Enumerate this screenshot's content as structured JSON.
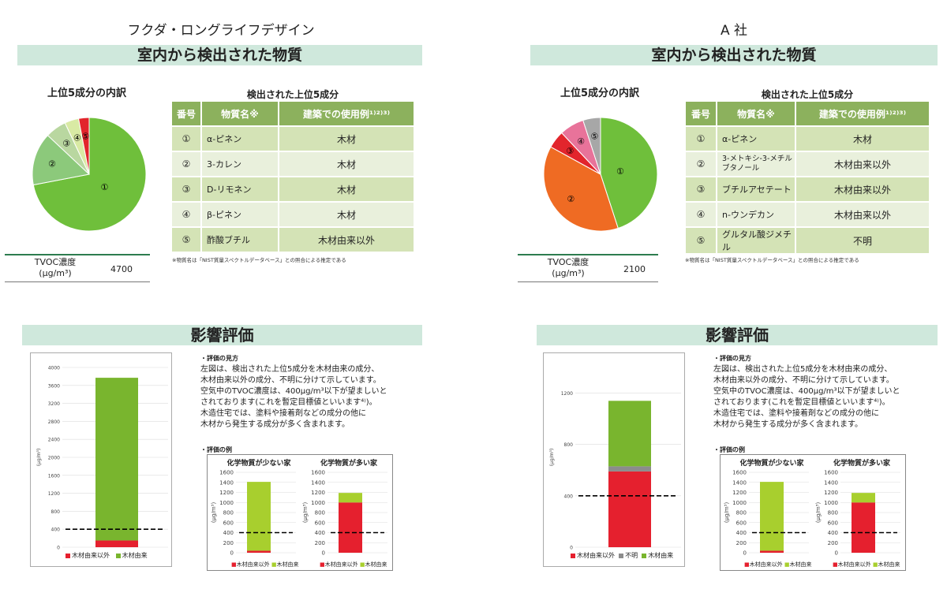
{
  "panels": [
    {
      "company": "フクダ・ロングライフデザイン",
      "banner": "室内から検出された物質",
      "pie_title": "上位5成分の内訳",
      "table_title": "検出された上位5成分",
      "table_headers": [
        "番号",
        "物質名※",
        "建築での使用例¹⁾²⁾³⁾"
      ],
      "rows": [
        {
          "no": "①",
          "name": "α-ピネン",
          "use": "木材"
        },
        {
          "no": "②",
          "name": "3-カレン",
          "use": "木材"
        },
        {
          "no": "③",
          "name": "D-リモネン",
          "use": "木材"
        },
        {
          "no": "④",
          "name": "β-ピネン",
          "use": "木材"
        },
        {
          "no": "⑤",
          "name": "酢酸ブチル",
          "use": "木材由来以外"
        }
      ],
      "note": "※物質名は「NIST質量スペクトルデータベース」との照合による推定である",
      "tvoc_label": "TVOC濃度",
      "tvoc_unit": "(μg/m³)",
      "tvoc_value": "4700",
      "eval_banner": "影響評価",
      "legend": [
        "木材由来以外",
        "木材由来"
      ]
    },
    {
      "company": "A 社",
      "banner": "室内から検出された物質",
      "pie_title": "上位5成分の内訳",
      "table_title": "検出された上位5成分",
      "table_headers": [
        "番号",
        "物質名※",
        "建築での使用例¹⁾²⁾³⁾"
      ],
      "rows": [
        {
          "no": "①",
          "name": "α-ピネン",
          "use": "木材"
        },
        {
          "no": "②",
          "name": "3-メトキシ-3-メチルブタノール",
          "use": "木材由来以外"
        },
        {
          "no": "③",
          "name": "ブチルアセテート",
          "use": "木材由来以外"
        },
        {
          "no": "④",
          "name": "n-ウンデカン",
          "use": "木材由来以外"
        },
        {
          "no": "⑤",
          "name": "グルタル酸ジメチル",
          "use": "不明"
        }
      ],
      "note": "※物質名は「NIST質量スペクトルデータベース」との照合による推定である",
      "tvoc_label": "TVOC濃度",
      "tvoc_unit": "(μg/m³)",
      "tvoc_value": "2100",
      "eval_banner": "影響評価",
      "legend": [
        "木材由来以外",
        "不明",
        "木材由来"
      ]
    }
  ],
  "description": {
    "heading": "・評価の見方",
    "lines": [
      "左図は、検出された上位5成分を木材由来の成分、",
      "木材由来以外の成分、不明に分けて示しています。",
      "空気中のTVOC濃度は、400μg/m³以下が望ましいと",
      "されております(これを暫定目標値といいます⁴⁾)。",
      "木造住宅では、塗料や接着剤などの成分の他に",
      "木材から発生する成分が多く含まれます。"
    ],
    "example_heading": "・評価の例",
    "example_titles": [
      "化学物質が少ない家",
      "化学物質が多い家"
    ],
    "example_legend": [
      "木材由来以外",
      "木材由来"
    ]
  },
  "colors": {
    "wood": "#79b52e",
    "nonwood": "#e5202e",
    "unknown": "#8c8c8c",
    "banner": "#cfe8dc",
    "pie_green": "#6fbf3b",
    "pie_orange": "#ef6b23"
  },
  "chart_data": [
    {
      "type": "pie",
      "title": "上位5成分の内訳",
      "labels": [
        "①",
        "②",
        "③",
        "④",
        "⑤"
      ],
      "values": [
        72,
        15,
        6,
        4,
        3
      ],
      "colors": [
        "#6fbf3b",
        "#8cc97b",
        "#b9d7a0",
        "#d9eaa4",
        "#e2252c"
      ]
    },
    {
      "type": "bar",
      "stacked": true,
      "ylabel": "(μg/m³)",
      "ylim": [
        0,
        4000
      ],
      "yticks": [
        0,
        400,
        800,
        1200,
        1600,
        2000,
        2400,
        2800,
        3200,
        3600,
        4000
      ],
      "series": [
        {
          "name": "木材由来以外",
          "values": [
            150
          ]
        },
        {
          "name": "木材由来",
          "values": [
            3620
          ]
        }
      ],
      "reference_line": 400
    },
    {
      "type": "bar",
      "stacked": true,
      "title": "化学物質が少ない家",
      "ylabel": "(μg/m³)",
      "ylim": [
        0,
        1600
      ],
      "yticks": [
        0,
        200,
        400,
        600,
        800,
        1000,
        1200,
        1400,
        1600
      ],
      "series": [
        {
          "name": "木材由来以外",
          "values": [
            40
          ]
        },
        {
          "name": "木材由来",
          "values": [
            1370
          ]
        }
      ],
      "reference_line": 400
    },
    {
      "type": "bar",
      "stacked": true,
      "title": "化学物質が多い家",
      "ylabel": "(μg/m³)",
      "ylim": [
        0,
        1600
      ],
      "yticks": [
        0,
        200,
        400,
        600,
        800,
        1000,
        1200,
        1400,
        1600
      ],
      "series": [
        {
          "name": "木材由来以外",
          "values": [
            1000
          ]
        },
        {
          "name": "木材由来",
          "values": [
            190
          ]
        }
      ],
      "reference_line": 400
    },
    {
      "type": "pie",
      "title": "上位5成分の内訳",
      "labels": [
        "①",
        "②",
        "③",
        "④",
        "⑤"
      ],
      "values": [
        45,
        38,
        5,
        7,
        5
      ],
      "colors": [
        "#6fbf3b",
        "#ef6b23",
        "#e2252c",
        "#e8739a",
        "#a7a7a7"
      ]
    },
    {
      "type": "bar",
      "stacked": true,
      "ylabel": "(μg/m³)",
      "ylim": [
        0,
        1400
      ],
      "yticks": [
        0,
        400,
        800,
        1200
      ],
      "series": [
        {
          "name": "木材由来以外",
          "values": [
            590
          ]
        },
        {
          "name": "不明",
          "values": [
            40
          ]
        },
        {
          "name": "木材由来",
          "values": [
            510
          ]
        }
      ],
      "reference_line": 400
    },
    {
      "type": "bar",
      "stacked": true,
      "title": "化学物質が少ない家",
      "ylabel": "(μg/m³)",
      "ylim": [
        0,
        1600
      ],
      "yticks": [
        0,
        200,
        400,
        600,
        800,
        1000,
        1200,
        1400,
        1600
      ],
      "series": [
        {
          "name": "木材由来以外",
          "values": [
            40
          ]
        },
        {
          "name": "木材由来",
          "values": [
            1370
          ]
        }
      ],
      "reference_line": 400
    },
    {
      "type": "bar",
      "stacked": true,
      "title": "化学物質が多い家",
      "ylabel": "(μg/m³)",
      "ylim": [
        0,
        1600
      ],
      "yticks": [
        0,
        200,
        400,
        600,
        800,
        1000,
        1200,
        1400,
        1600
      ],
      "series": [
        {
          "name": "木材由来以外",
          "values": [
            1000
          ]
        },
        {
          "name": "木材由来",
          "values": [
            190
          ]
        }
      ],
      "reference_line": 400
    }
  ]
}
